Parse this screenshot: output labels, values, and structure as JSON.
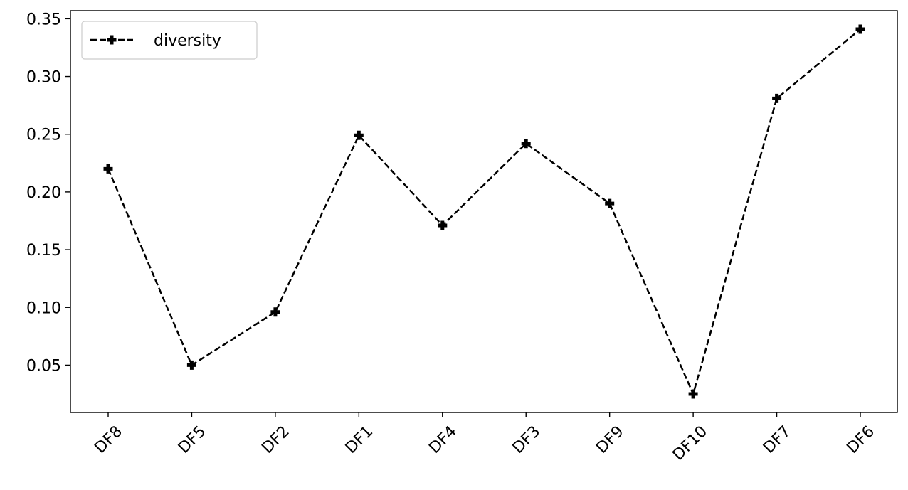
{
  "chart_data": {
    "type": "line",
    "title": "",
    "xlabel": "",
    "ylabel": "",
    "categories": [
      "DF8",
      "DF5",
      "DF2",
      "DF1",
      "DF4",
      "DF3",
      "DF9",
      "DF10",
      "DF7",
      "DF6"
    ],
    "series": [
      {
        "name": "diversity",
        "values": [
          0.22,
          0.05,
          0.096,
          0.249,
          0.171,
          0.242,
          0.19,
          0.025,
          0.281,
          0.341
        ],
        "color": "#000000",
        "line_style": "dashed",
        "marker": "plus-filled"
      }
    ],
    "ylim": [
      0.009,
      0.357
    ],
    "yticks": [
      "0.05",
      "0.10",
      "0.15",
      "0.20",
      "0.25",
      "0.30",
      "0.35"
    ],
    "grid": false,
    "legend_position": "top-left",
    "x_tick_rotation": 45
  }
}
